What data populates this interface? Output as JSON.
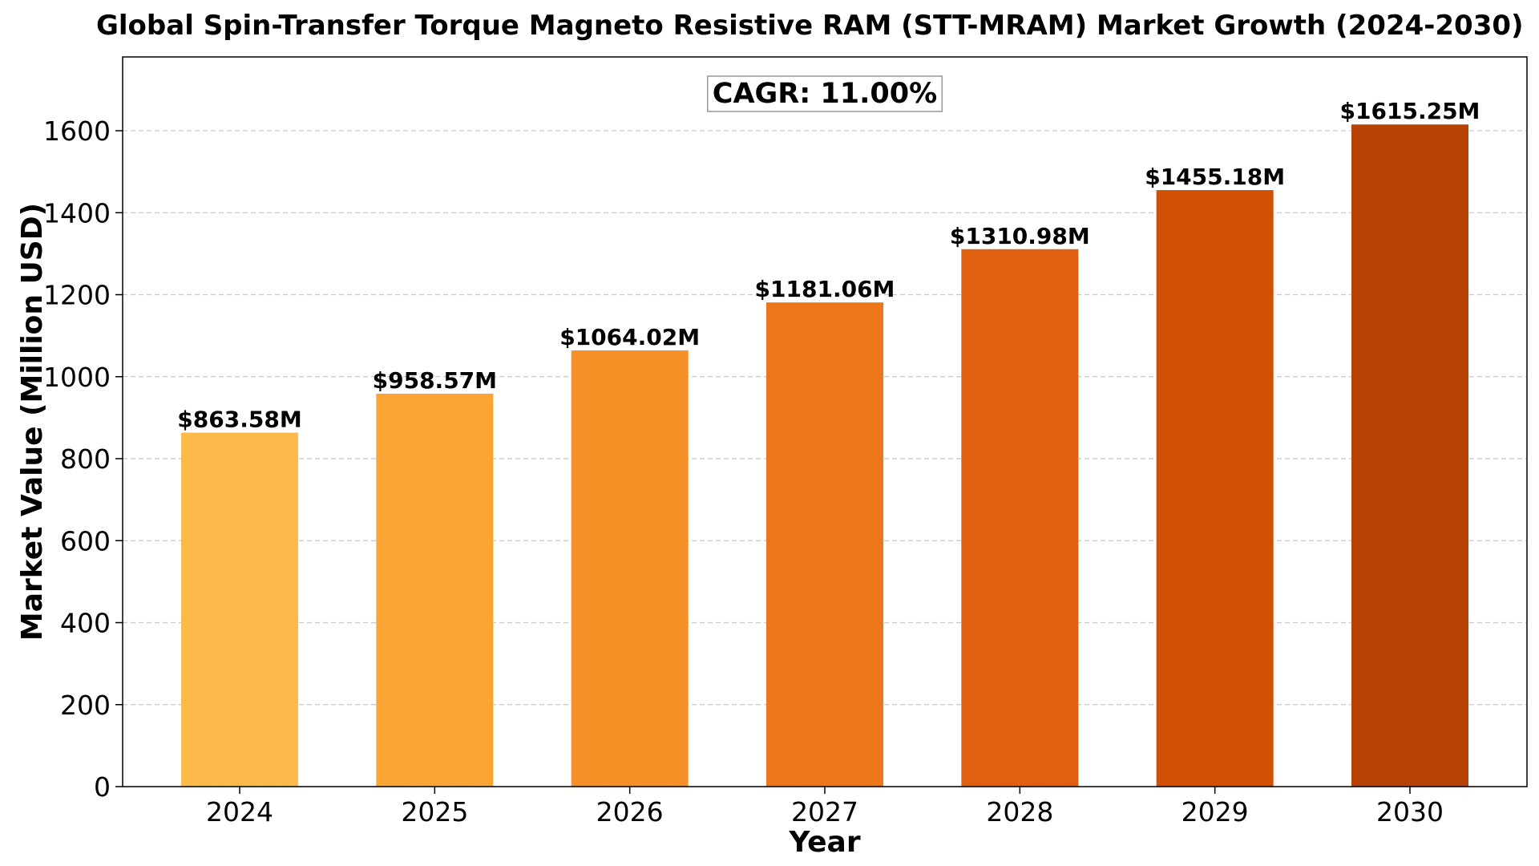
{
  "chart_data": {
    "type": "bar",
    "title": "Global Spin-Transfer Torque Magneto Resistive RAM (STT-MRAM) Market Growth (2024-2030)",
    "xlabel": "Year",
    "ylabel": "Market Value (Million USD)",
    "categories": [
      "2024",
      "2025",
      "2026",
      "2027",
      "2028",
      "2029",
      "2030"
    ],
    "values": [
      863.58,
      958.57,
      1064.02,
      1181.06,
      1310.98,
      1455.18,
      1615.25
    ],
    "data_labels": [
      "$863.58M",
      "$958.57M",
      "$1064.02M",
      "$1181.06M",
      "$1310.98M",
      "$1455.18M",
      "$1615.25M"
    ],
    "colors": [
      "#fdb94a",
      "#fca435",
      "#f68f26",
      "#ee761a",
      "#e06010",
      "#d05005",
      "#b84307"
    ],
    "ylim": [
      0,
      1780
    ],
    "yticks": [
      0,
      200,
      400,
      600,
      800,
      1000,
      1200,
      1400,
      1600
    ],
    "ytick_labels": [
      "0",
      "200",
      "400",
      "600",
      "800",
      "1000",
      "1200",
      "1400",
      "1600"
    ],
    "grid": "y-dashed",
    "annotation": "CAGR: 11.00%",
    "legend": "none"
  }
}
